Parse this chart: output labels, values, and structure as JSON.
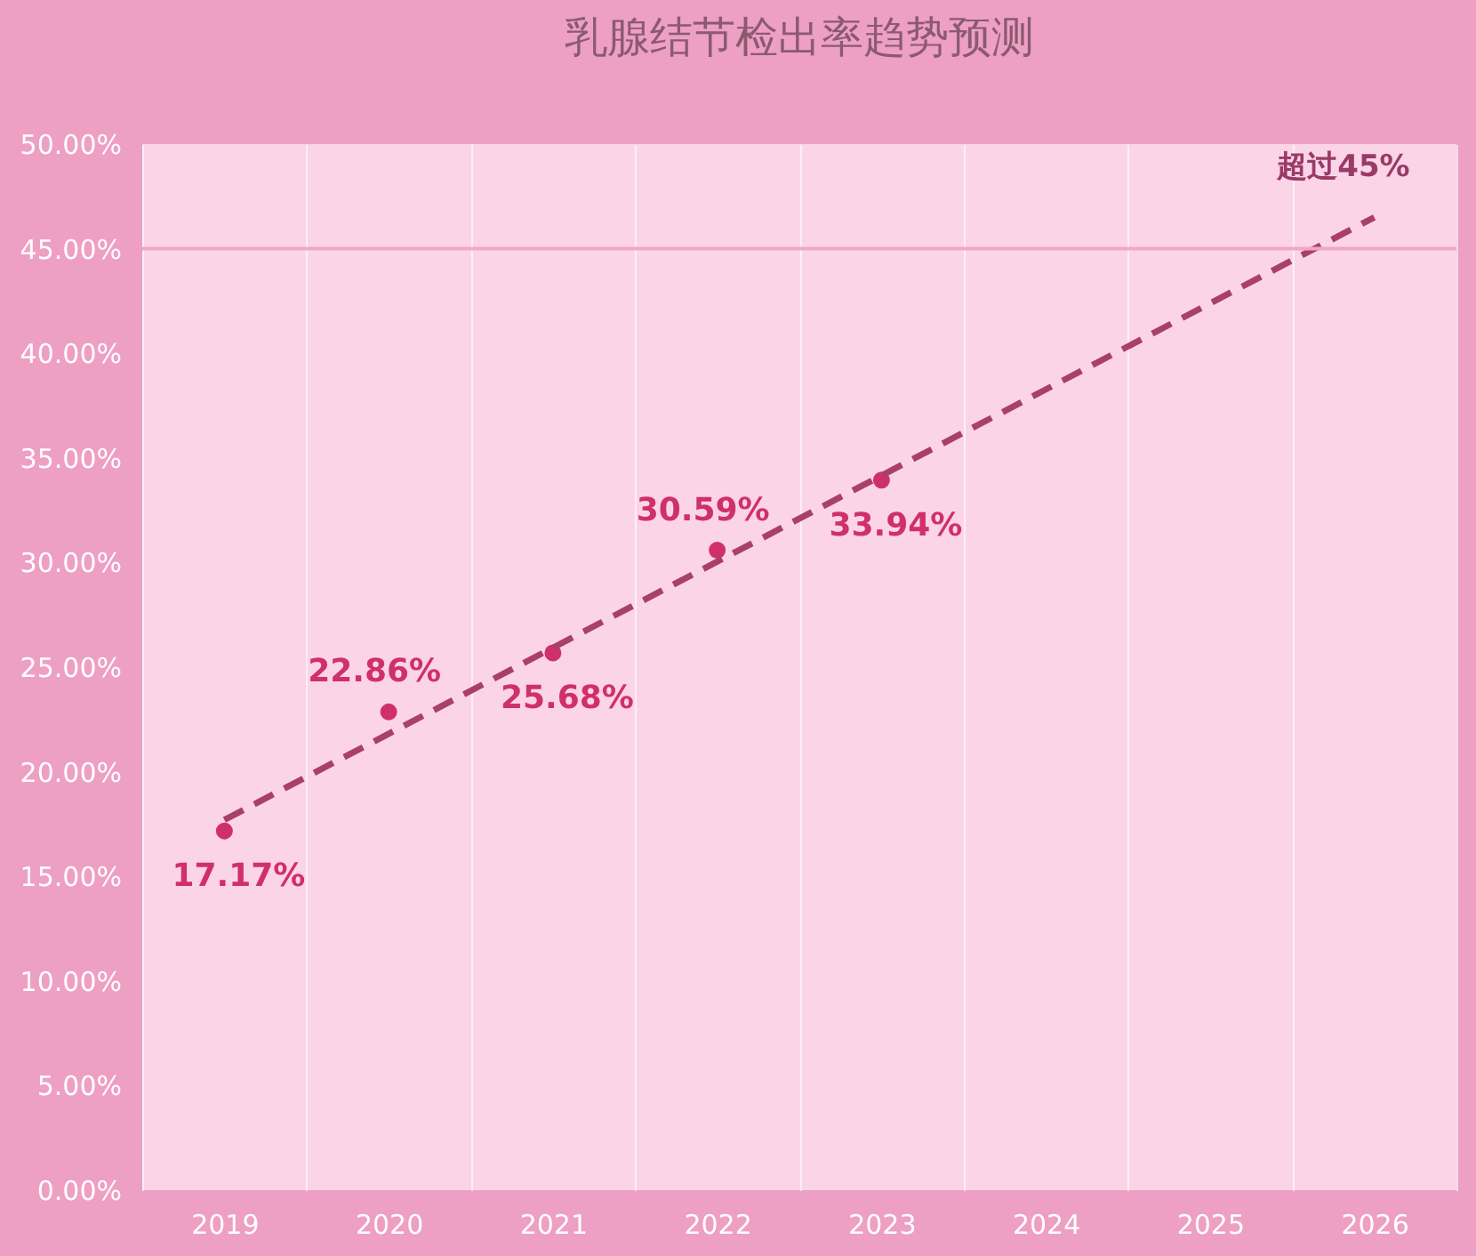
{
  "chart_data": {
    "type": "scatter",
    "title": "乳腺结节检出率趋势预测",
    "categories": [
      "2019",
      "2020",
      "2021",
      "2022",
      "2023",
      "2024",
      "2025",
      "2026"
    ],
    "series": [
      {
        "color": "#d0306a",
        "values": [
          17.17,
          22.86,
          25.68,
          30.59,
          33.94,
          null,
          null,
          null
        ],
        "value_labels": [
          "17.17%",
          "22.86%",
          "25.68%",
          "30.59%",
          "33.94%",
          null,
          null,
          null
        ]
      },
      {
        "type": "line",
        "color": "#a8406a",
        "line_style": "dashed",
        "values": [
          17.7,
          null,
          null,
          null,
          null,
          null,
          null,
          46.5
        ]
      }
    ],
    "ylim": [
      0,
      50
    ],
    "yticks": [
      {
        "value": 0,
        "label": "0.00%"
      },
      {
        "value": 5,
        "label": "5.00%"
      },
      {
        "value": 10,
        "label": "10.00%"
      },
      {
        "value": 15,
        "label": "15.00%"
      },
      {
        "value": 20,
        "label": "20.00%"
      },
      {
        "value": 25,
        "label": "25.00%"
      },
      {
        "value": 30,
        "label": "30.00%"
      },
      {
        "value": 35,
        "label": "35.00%"
      },
      {
        "value": 40,
        "label": "40.00%"
      },
      {
        "value": 45,
        "label": "45.00%"
      },
      {
        "value": 50,
        "label": "50.00%"
      }
    ],
    "ref_lines": [
      {
        "axis": "y",
        "value": 45,
        "color": "#f0a8c8"
      }
    ],
    "annotations": [
      {
        "text": "超过45%",
        "x": "2026",
        "y": 46.5
      }
    ],
    "grid": "x"
  }
}
